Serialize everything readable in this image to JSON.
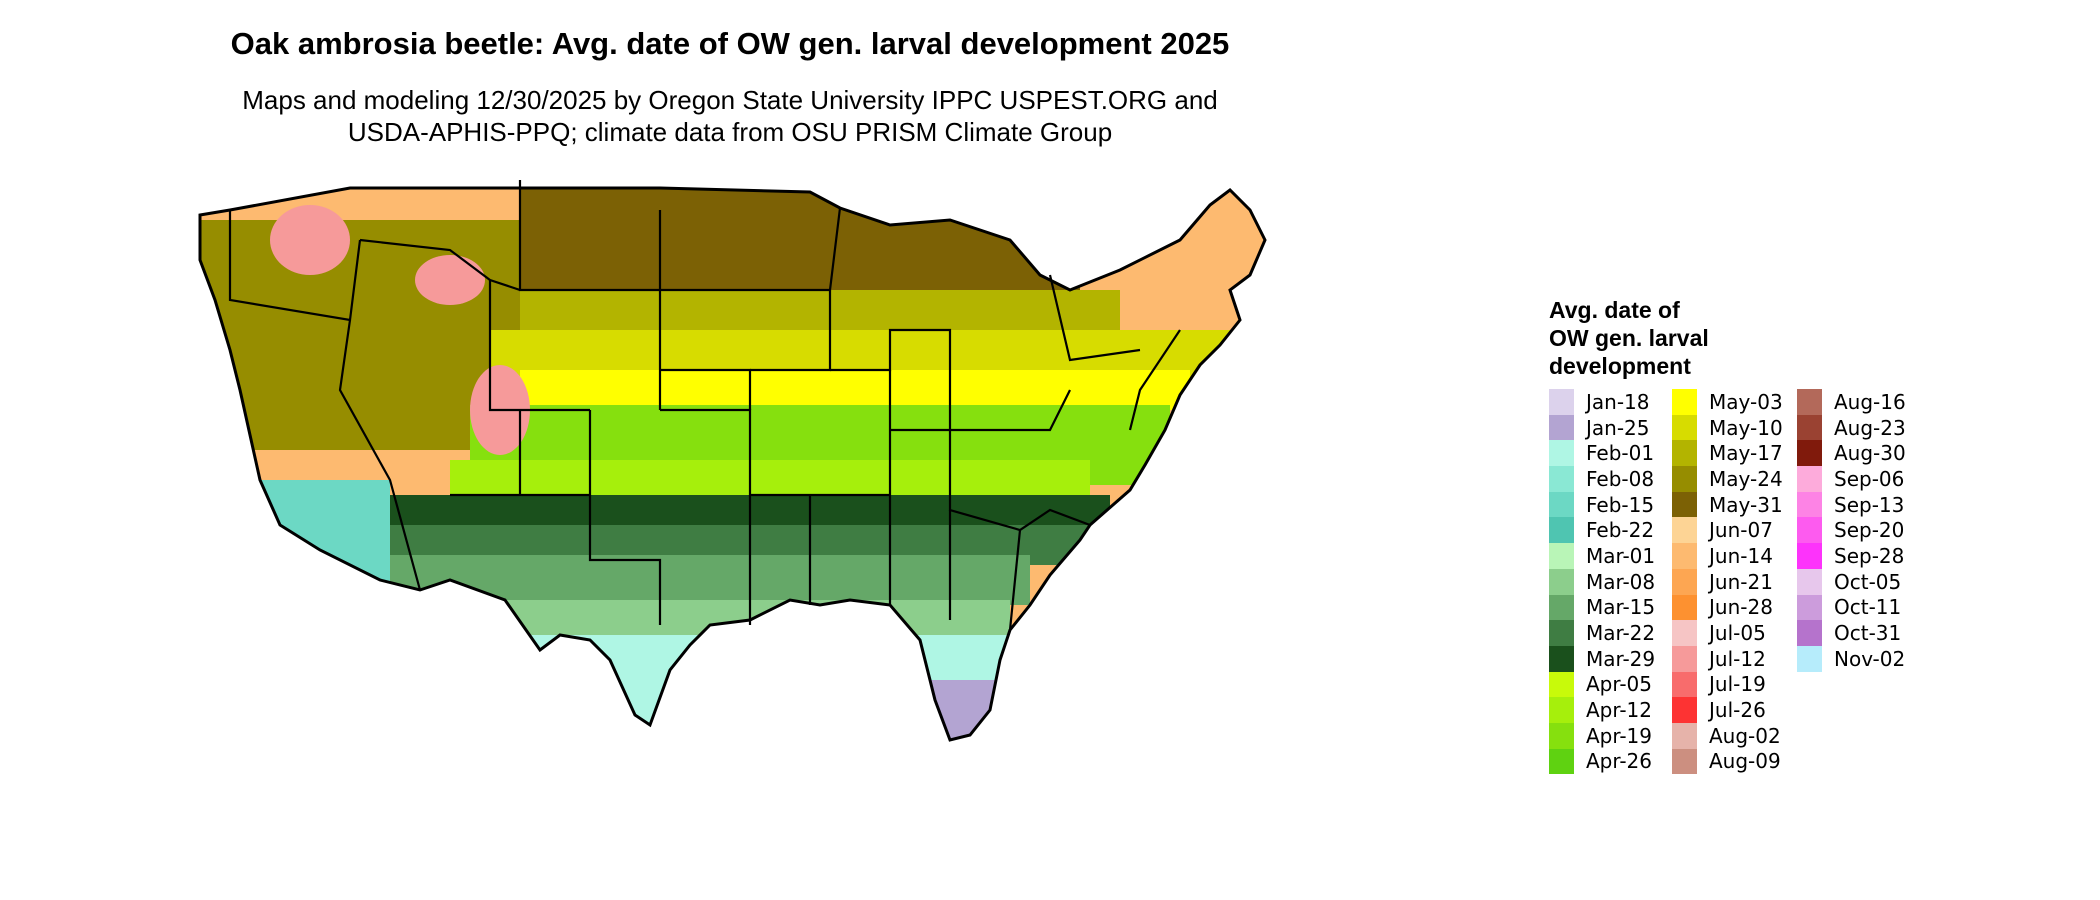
{
  "title": "Oak ambrosia beetle: Avg. date of OW gen. larval development 2025",
  "subtitle_line1": "Maps and modeling 12/30/2025 by Oregon State University IPPC USPEST.ORG and",
  "subtitle_line2": "USDA-APHIS-PPQ; climate data from OSU PRISM Climate Group",
  "legend": {
    "title_line1": "Avg. date of",
    "title_line2": "OW gen. larval",
    "title_line3": "development",
    "columns": [
      [
        {
          "label": "Jan-18",
          "color": "#dcd2ec"
        },
        {
          "label": "Jan-25",
          "color": "#b3a4d2"
        },
        {
          "label": "Feb-01",
          "color": "#aff6e4"
        },
        {
          "label": "Feb-08",
          "color": "#8ae8d4"
        },
        {
          "label": "Feb-15",
          "color": "#6cd8c4"
        },
        {
          "label": "Feb-22",
          "color": "#4fc5b1"
        },
        {
          "label": "Mar-01",
          "color": "#b9f5b7"
        },
        {
          "label": "Mar-08",
          "color": "#8cce8c"
        },
        {
          "label": "Mar-15",
          "color": "#65a868"
        },
        {
          "label": "Mar-22",
          "color": "#3f7d43"
        },
        {
          "label": "Mar-29",
          "color": "#1a501c"
        },
        {
          "label": "Apr-05",
          "color": "#c8fa0a"
        },
        {
          "label": "Apr-12",
          "color": "#a6ef0c"
        },
        {
          "label": "Apr-19",
          "color": "#86e00e"
        },
        {
          "label": "Apr-26",
          "color": "#5fd211"
        }
      ],
      [
        {
          "label": "May-03",
          "color": "#ffff00"
        },
        {
          "label": "May-10",
          "color": "#d7dc00"
        },
        {
          "label": "May-17",
          "color": "#b3b400"
        },
        {
          "label": "May-24",
          "color": "#968d00"
        },
        {
          "label": "May-31",
          "color": "#7c6105"
        },
        {
          "label": "Jun-07",
          "color": "#fdd495"
        },
        {
          "label": "Jun-14",
          "color": "#fdba70"
        },
        {
          "label": "Jun-21",
          "color": "#fda652"
        },
        {
          "label": "Jun-28",
          "color": "#fd9130"
        },
        {
          "label": "Jul-05",
          "color": "#f6c5c5"
        },
        {
          "label": "Jul-12",
          "color": "#f69a9a"
        },
        {
          "label": "Jul-19",
          "color": "#f86c6c"
        },
        {
          "label": "Jul-26",
          "color": "#fd3333"
        },
        {
          "label": "Aug-02",
          "color": "#e6b3aa"
        },
        {
          "label": "Aug-09",
          "color": "#cc8f80"
        }
      ],
      [
        {
          "label": "Aug-16",
          "color": "#b3695a"
        },
        {
          "label": "Aug-23",
          "color": "#9a4232"
        },
        {
          "label": "Aug-30",
          "color": "#801a0c"
        },
        {
          "label": "Sep-06",
          "color": "#fdabdb"
        },
        {
          "label": "Sep-13",
          "color": "#fd83e5"
        },
        {
          "label": "Sep-20",
          "color": "#fd5bef"
        },
        {
          "label": "Sep-28",
          "color": "#fd33fb"
        },
        {
          "label": "Oct-05",
          "color": "#e7c7ec"
        },
        {
          "label": "Oct-11",
          "color": "#cc9cdc"
        },
        {
          "label": "Oct-31",
          "color": "#b573cc"
        },
        {
          "label": "Nov-02",
          "color": "#b6ecfb"
        }
      ]
    ]
  },
  "map_colors": {
    "northwest_high": "#fdba70",
    "northwest_mid": "#968d00",
    "northern_plains": "#7c6105",
    "central_plains": "#b3b400",
    "corn_belt": "#d7dc00",
    "mid_belt": "#ffff00",
    "upper_south": "#86e00e",
    "lower_mid_south": "#a6ef0c",
    "deep_south_north": "#1a501c",
    "gulf_band1": "#3f7d43",
    "gulf_band2": "#65a868",
    "gulf_band3": "#8cce8c",
    "gulf_coast": "#aff6e4",
    "gulf_coast2": "#6cd8c4",
    "south_florida": "#b3a4d2",
    "mountain_peaks": "#f69a9a",
    "outline": "#000000"
  }
}
